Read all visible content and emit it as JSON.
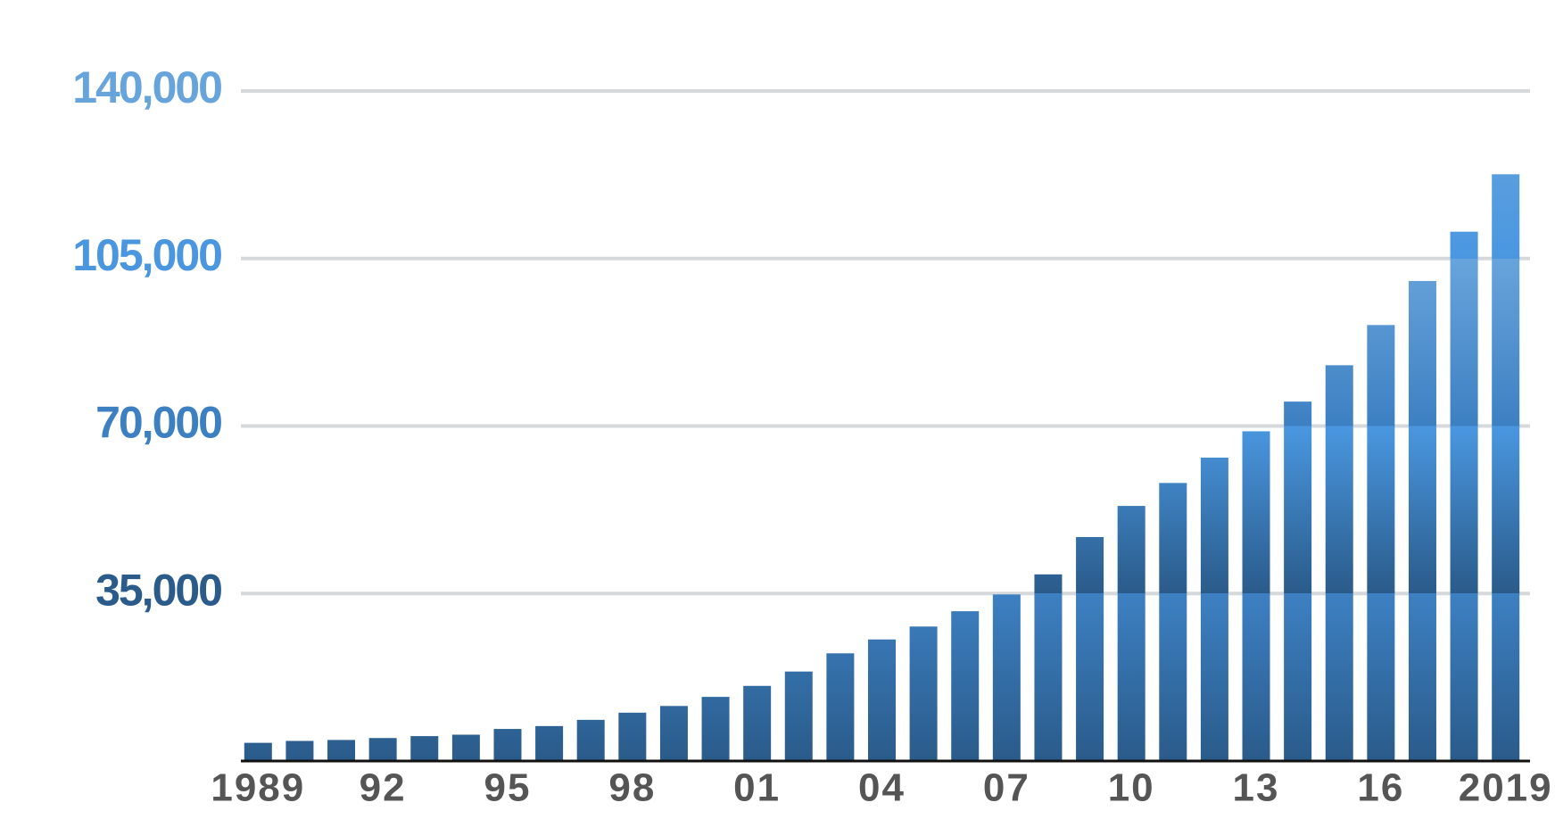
{
  "chart_data": {
    "type": "bar",
    "categories": [
      "1989",
      null,
      null,
      "92",
      null,
      null,
      "95",
      null,
      null,
      "98",
      null,
      null,
      "01",
      null,
      null,
      "04",
      null,
      null,
      "07",
      null,
      null,
      "10",
      null,
      null,
      "13",
      null,
      null,
      "16",
      null,
      null,
      "2019"
    ],
    "values": [
      3800,
      4200,
      4400,
      4800,
      5200,
      5500,
      6700,
      7300,
      8600,
      10100,
      11500,
      13400,
      15700,
      18700,
      22500,
      25400,
      28100,
      31300,
      34800,
      39000,
      46800,
      53300,
      58100,
      63400,
      68900,
      75100,
      82700,
      91100,
      100300,
      110600,
      122600
    ],
    "band_colors": [
      "#2a5b8a",
      "#3d80c2",
      "#4a97e0",
      "#68a4dc"
    ],
    "ylim": [
      0,
      140000
    ],
    "yticks": [
      {
        "value": 35000,
        "label": "35,000"
      },
      {
        "value": 70000,
        "label": "70,000"
      },
      {
        "value": 105000,
        "label": "105,000"
      },
      {
        "value": 140000,
        "label": "140,000"
      }
    ],
    "grid": true
  }
}
